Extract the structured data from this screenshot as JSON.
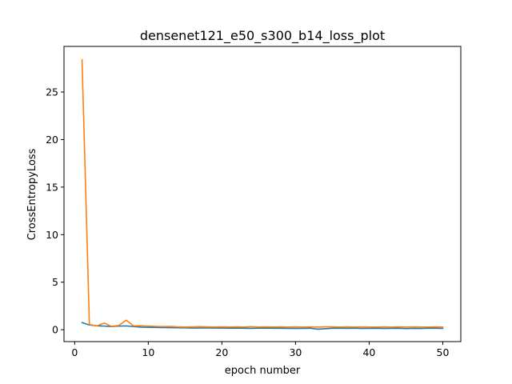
{
  "chart_data": {
    "type": "line",
    "title": "densenet121_e50_s300_b14_loss_plot",
    "xlabel": "epoch number",
    "ylabel": "CrossEntropyLoss",
    "xlim": [
      -1.45,
      52.45
    ],
    "ylim": [
      -1.25,
      29.8
    ],
    "x_ticks": [
      0,
      10,
      20,
      30,
      40,
      50
    ],
    "y_ticks": [
      0,
      5,
      10,
      15,
      20,
      25
    ],
    "grid": false,
    "x": [
      1,
      2,
      3,
      4,
      5,
      6,
      7,
      8,
      9,
      10,
      11,
      12,
      13,
      14,
      15,
      16,
      17,
      18,
      19,
      20,
      21,
      22,
      23,
      24,
      25,
      26,
      27,
      28,
      29,
      30,
      31,
      32,
      33,
      34,
      35,
      36,
      37,
      38,
      39,
      40,
      41,
      42,
      43,
      44,
      45,
      46,
      47,
      48,
      49,
      50
    ],
    "series": [
      {
        "color": "#1f77b4",
        "values": [
          0.75,
          0.5,
          0.42,
          0.38,
          0.33,
          0.38,
          0.4,
          0.33,
          0.27,
          0.25,
          0.24,
          0.23,
          0.22,
          0.21,
          0.2,
          0.17,
          0.19,
          0.18,
          0.17,
          0.18,
          0.16,
          0.17,
          0.15,
          0.14,
          0.16,
          0.17,
          0.15,
          0.15,
          0.14,
          0.13,
          0.14,
          0.16,
          0.06,
          0.1,
          0.15,
          0.15,
          0.14,
          0.16,
          0.13,
          0.14,
          0.15,
          0.13,
          0.14,
          0.15,
          0.12,
          0.14,
          0.13,
          0.16,
          0.15,
          0.14
        ]
      },
      {
        "color": "#ff7f0e",
        "values": [
          28.4,
          0.55,
          0.4,
          0.7,
          0.35,
          0.45,
          1.0,
          0.4,
          0.42,
          0.38,
          0.35,
          0.33,
          0.35,
          0.3,
          0.28,
          0.3,
          0.32,
          0.3,
          0.28,
          0.3,
          0.28,
          0.3,
          0.28,
          0.32,
          0.28,
          0.3,
          0.28,
          0.3,
          0.28,
          0.3,
          0.28,
          0.3,
          0.28,
          0.3,
          0.3,
          0.28,
          0.3,
          0.28,
          0.3,
          0.28,
          0.28,
          0.3,
          0.28,
          0.3,
          0.28,
          0.3,
          0.28,
          0.28,
          0.3,
          0.28
        ]
      }
    ]
  }
}
